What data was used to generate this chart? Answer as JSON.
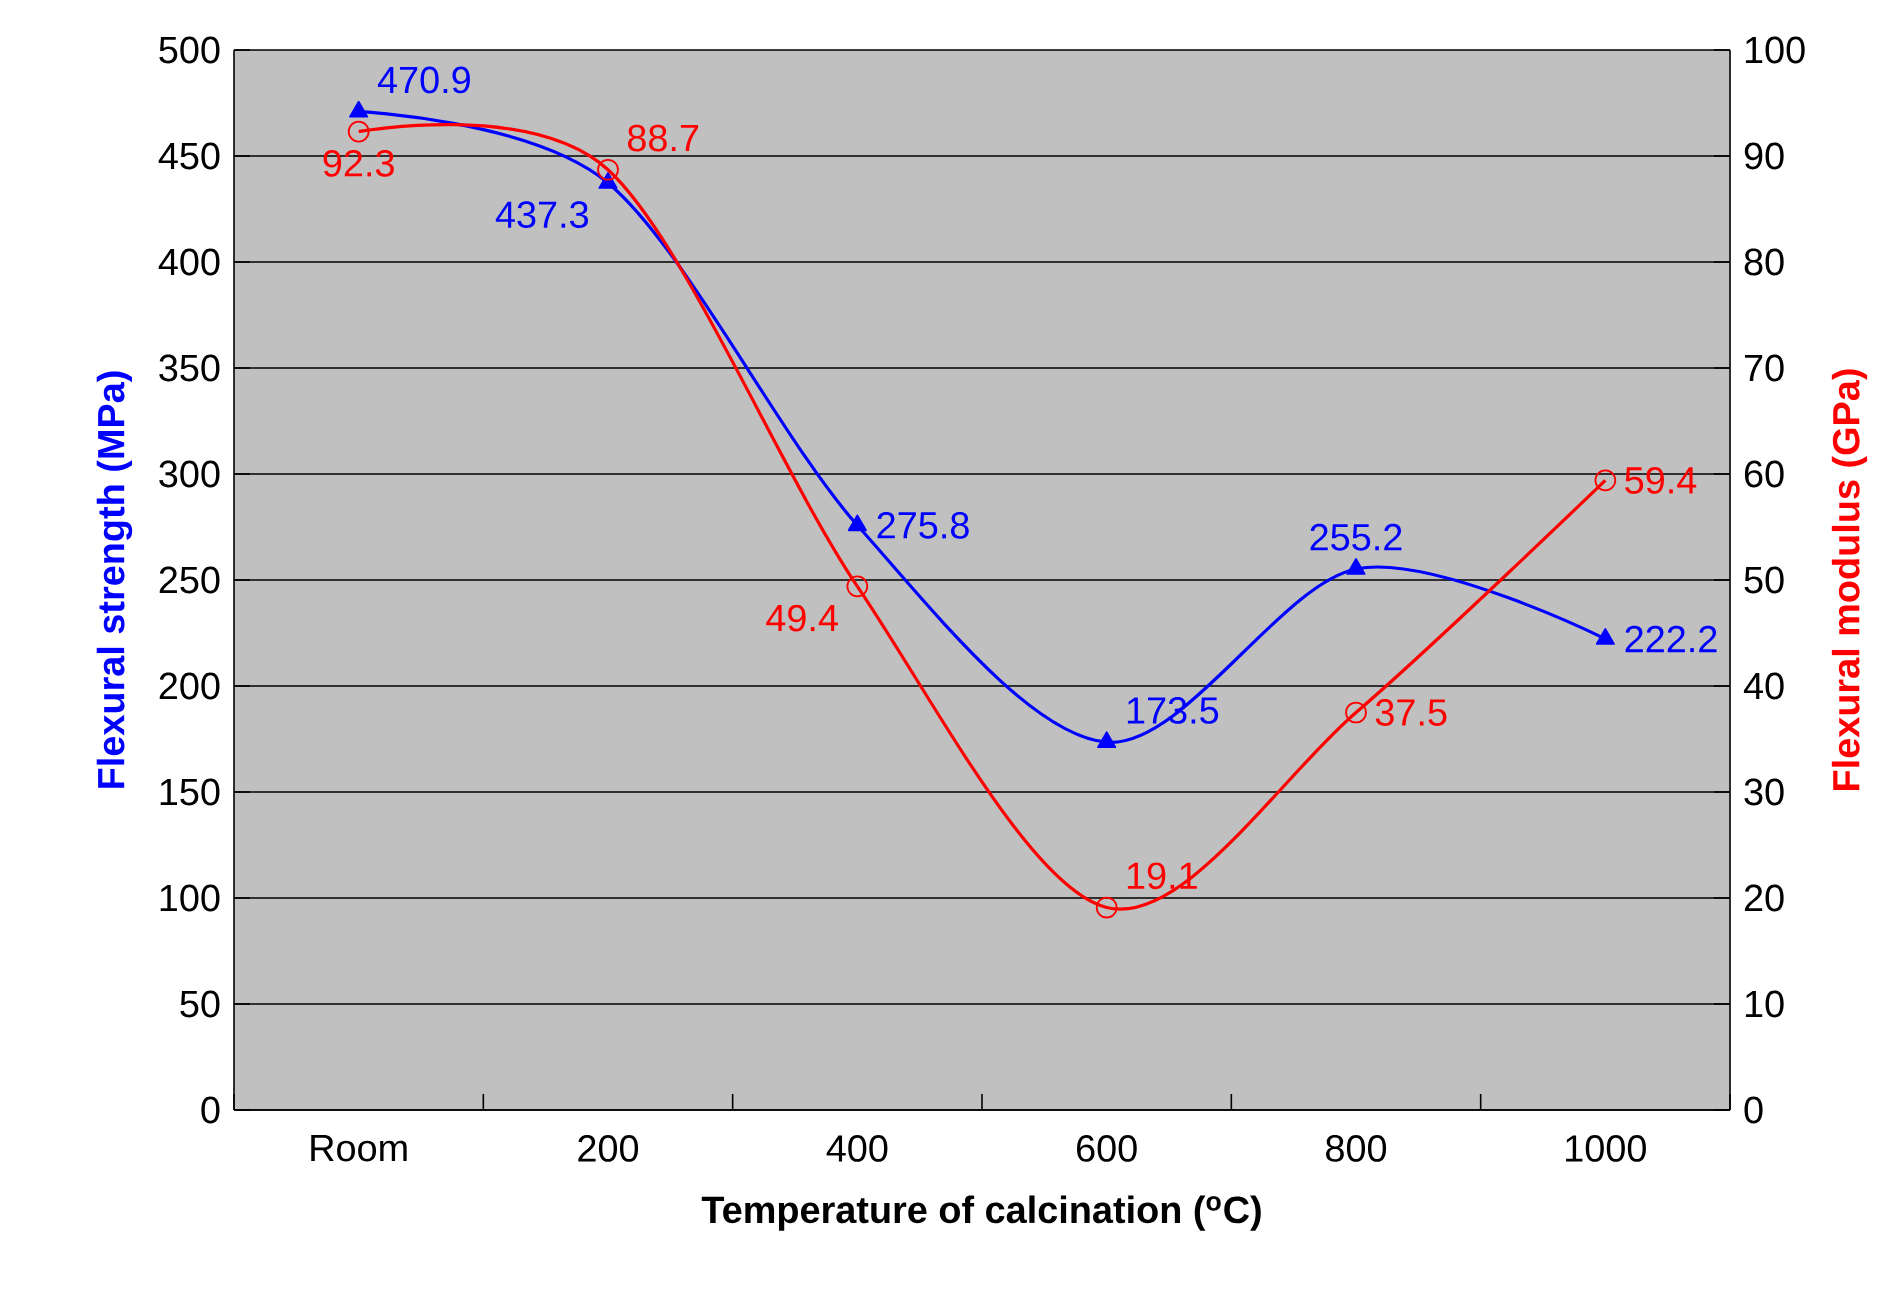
{
  "chart_data": {
    "type": "line",
    "xlabel": "Temperature of calcination ($^{o}$C)",
    "ylabel": "Flexural strength (MPa)",
    "y2label": "Flexural modulus (GPa)",
    "categories": [
      "Room",
      "200",
      "400",
      "600",
      "800",
      "1000"
    ],
    "series": [
      {
        "color": "#0000ff",
        "marker": "triangle",
        "values": [
          470.9,
          437.3,
          275.8,
          173.5,
          255.2,
          222.2
        ]
      },
      {
        "color": "#ff0000",
        "marker": "circle",
        "axis": "y2",
        "values": [
          92.3,
          88.7,
          49.4,
          19.1,
          37.5,
          59.4
        ]
      }
    ],
    "ylim": [
      0,
      500
    ],
    "yticks": [
      0,
      50,
      100,
      150,
      200,
      250,
      300,
      350,
      400,
      450,
      500
    ],
    "y2lim": [
      0,
      100
    ],
    "y2ticks": [
      0,
      10,
      20,
      30,
      40,
      50,
      60,
      70,
      80,
      90,
      100
    ],
    "grid": "y",
    "data_labels": true
  }
}
